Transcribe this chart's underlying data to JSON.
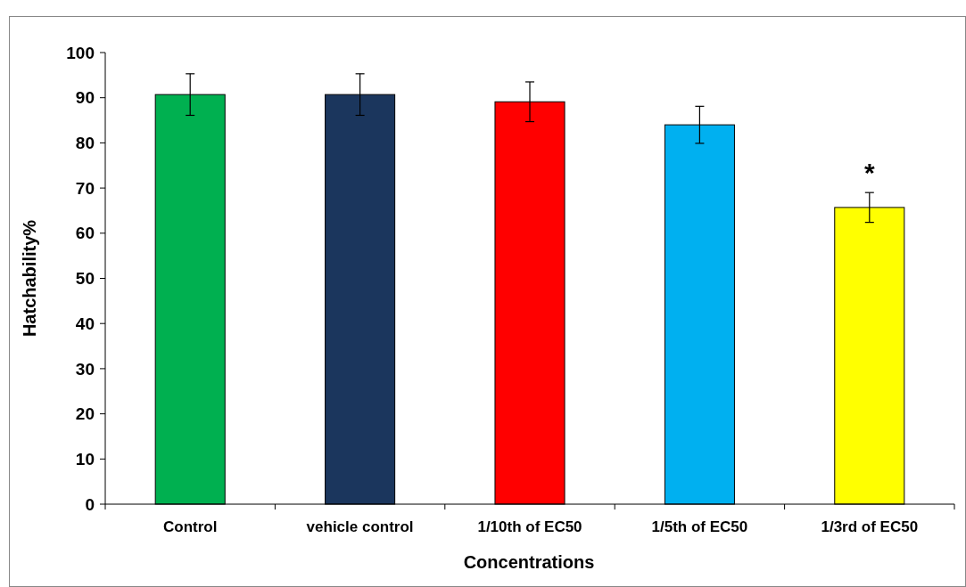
{
  "chart_data": {
    "type": "bar",
    "xlabel": "Concentrations",
    "ylabel": "Hatchability%",
    "categories": [
      "Control",
      "vehicle control",
      "1/10th of EC50",
      "1/5th of EC50",
      "1/3rd of EC50"
    ],
    "values": [
      90.7,
      90.7,
      89.1,
      84.0,
      65.7
    ],
    "colors": [
      "#00b050",
      "#1b365d",
      "#ff0000",
      "#00b0f0",
      "#ffff00"
    ],
    "errors": [
      4.6,
      4.6,
      4.4,
      4.1,
      3.3
    ],
    "ylim": [
      0,
      100
    ],
    "yticks": [
      0,
      10,
      20,
      30,
      40,
      50,
      60,
      70,
      80,
      90,
      100
    ],
    "grid": false,
    "annotations": [
      "*"
    ]
  }
}
